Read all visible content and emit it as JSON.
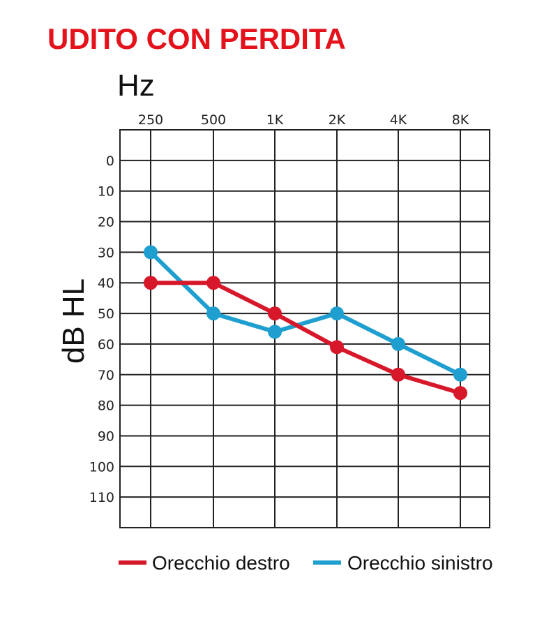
{
  "chart_data": {
    "type": "line",
    "title": "UDITO CON PERDITA",
    "xlabel": "Hz",
    "ylabel": "dB HL",
    "categories": [
      "250",
      "500",
      "1K",
      "2K",
      "4K",
      "8K"
    ],
    "y_ticks": [
      "0",
      "10",
      "20",
      "30",
      "40",
      "50",
      "60",
      "70",
      "80",
      "90",
      "100",
      "110"
    ],
    "ylim": [
      -10,
      120
    ],
    "y_inverted": true,
    "grid": true,
    "legend": "bottom",
    "series": [
      {
        "name": "Orecchio destro",
        "color": "#d7182a",
        "values": [
          40,
          40,
          50,
          61,
          70,
          76
        ]
      },
      {
        "name": "Orecchio sinistro",
        "color": "#1e9fd0",
        "values": [
          30,
          50,
          56,
          50,
          60,
          70
        ]
      }
    ]
  }
}
